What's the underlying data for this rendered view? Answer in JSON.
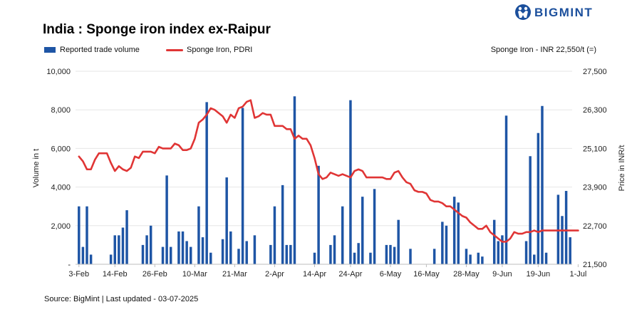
{
  "brand": {
    "name": "BIGMINT",
    "icon": "bigmint-logo-icon"
  },
  "colors": {
    "bar": "#1e55a5",
    "line": "#e03535",
    "grid": "#e6e6e6",
    "brand": "#1b4f9c"
  },
  "chart_data": {
    "type": "bar+line",
    "title": "India : Sponge iron index ex-Raipur",
    "legend": [
      "Reported trade volume",
      "Sponge Iron, PDRI"
    ],
    "info_label": "Sponge Iron - INR 22,550/t (=)",
    "source": "Source: BigMint | Last updated - 03-07-2025",
    "ylabel_left": "Volume in t",
    "ylabel_right": "Price in INR/t",
    "ylim_left": [
      0,
      10000
    ],
    "ylim_right": [
      21500,
      27500
    ],
    "left_ticks": [
      "-",
      "2,000",
      "4,000",
      "6,000",
      "8,000",
      "10,000"
    ],
    "right_ticks": [
      "21,500",
      "22,700",
      "23,900",
      "25,100",
      "26,300",
      "27,500"
    ],
    "x_labels": [
      "3-Feb",
      "14-Feb",
      "26-Feb",
      "10-Mar",
      "21-Mar",
      "2-Apr",
      "14-Apr",
      "24-Apr",
      "6-May",
      "16-May",
      "28-May",
      "9-Jun",
      "19-Jun",
      "1-Jul"
    ],
    "x_label_index": [
      0,
      9,
      19,
      29,
      39,
      49,
      59,
      68,
      78,
      87,
      97,
      106,
      115,
      125
    ],
    "series": [
      {
        "name": "Reported trade volume",
        "kind": "bar",
        "values": [
          3000,
          900,
          3000,
          500,
          0,
          0,
          0,
          0,
          500,
          1500,
          1500,
          1900,
          2800,
          0,
          0,
          0,
          1000,
          1500,
          2000,
          0,
          0,
          900,
          4600,
          900,
          0,
          1700,
          1700,
          1200,
          900,
          0,
          3000,
          1400,
          8400,
          600,
          0,
          0,
          1300,
          4500,
          1700,
          0,
          800,
          8100,
          1200,
          0,
          1500,
          0,
          0,
          0,
          1000,
          3000,
          0,
          4100,
          1000,
          1000,
          8700,
          0,
          0,
          0,
          0,
          600,
          5100,
          0,
          0,
          1000,
          1500,
          0,
          3000,
          0,
          8500,
          600,
          1100,
          3500,
          0,
          600,
          3900,
          0,
          0,
          1000,
          1000,
          900,
          2300,
          0,
          0,
          800,
          0,
          0,
          0,
          0,
          0,
          800,
          0,
          2200,
          2000,
          0,
          3500,
          3200,
          0,
          800,
          500,
          0,
          600,
          400,
          0,
          0,
          2300,
          1200,
          1500,
          7700,
          0,
          0,
          0,
          0,
          1200,
          5600,
          500,
          6800,
          8200,
          600,
          0,
          0,
          3600,
          2500,
          3800,
          1400
        ]
      },
      {
        "name": "Sponge Iron, PDRI",
        "kind": "line",
        "values": [
          24850,
          24700,
          24450,
          24450,
          24750,
          24950,
          24950,
          24950,
          24650,
          24400,
          24550,
          24450,
          24400,
          24500,
          24850,
          24800,
          25000,
          25000,
          25000,
          24950,
          25150,
          25100,
          25100,
          25100,
          25250,
          25200,
          25050,
          25050,
          25100,
          25400,
          25900,
          26000,
          26150,
          26350,
          26300,
          26200,
          26100,
          25900,
          26150,
          26050,
          26350,
          26400,
          26550,
          26600,
          26050,
          26100,
          26200,
          26150,
          26150,
          25800,
          25800,
          25800,
          25700,
          25700,
          25400,
          25500,
          25400,
          25400,
          25200,
          24800,
          24300,
          24150,
          24200,
          24350,
          24300,
          24250,
          24300,
          24250,
          24200,
          24400,
          24450,
          24400,
          24200,
          24200,
          24200,
          24200,
          24200,
          24150,
          24150,
          24350,
          24400,
          24200,
          24050,
          24000,
          23800,
          23750,
          23750,
          23700,
          23500,
          23450,
          23450,
          23400,
          23300,
          23300,
          23200,
          23100,
          23000,
          22950,
          22800,
          22700,
          22600,
          22600,
          22700,
          22500,
          22400,
          22300,
          22200,
          22200,
          22300,
          22500,
          22450,
          22450,
          22500,
          22500,
          22550,
          22500,
          22550,
          22550,
          22550,
          22550,
          22550,
          22550,
          22550,
          22550,
          22550,
          22550
        ]
      }
    ]
  }
}
